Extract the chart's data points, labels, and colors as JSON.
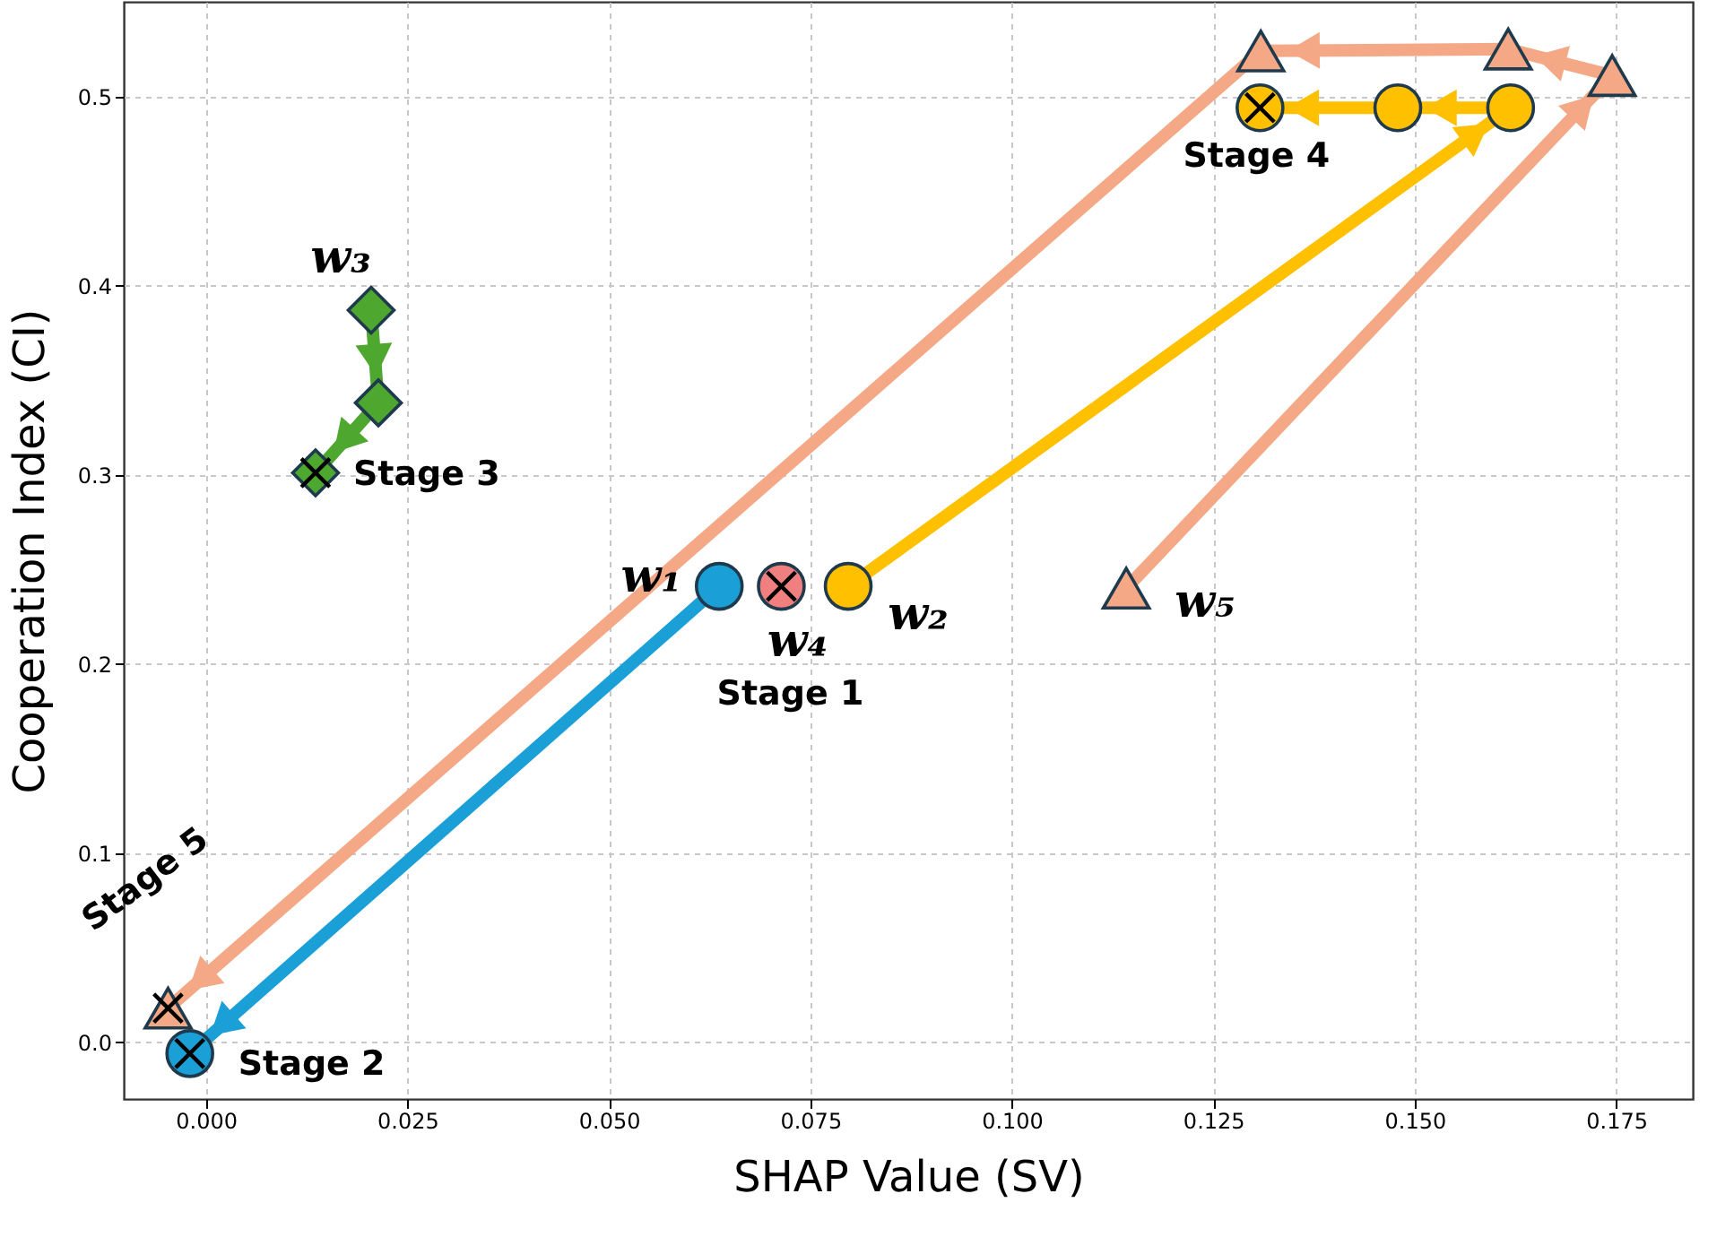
{
  "chart_data": {
    "type": "line",
    "xlabel": "SHAP Value (SV)",
    "ylabel": "Cooperation Index (CI)",
    "xlim": [
      -0.0102,
      0.1845
    ],
    "ylim": [
      -0.03,
      0.55
    ],
    "xticks": [
      {
        "value": 0,
        "label": "0.000"
      },
      {
        "value": 0.025,
        "label": "0.025"
      },
      {
        "value": 0.05,
        "label": "0.050"
      },
      {
        "value": 0.075,
        "label": "0.075"
      },
      {
        "value": 0.1,
        "label": "0.100"
      },
      {
        "value": 0.125,
        "label": "0.125"
      },
      {
        "value": 0.15,
        "label": "0.150"
      },
      {
        "value": 0.175,
        "label": "0.175"
      }
    ],
    "yticks": [
      {
        "value": 0,
        "label": "0.0"
      },
      {
        "value": 0.1,
        "label": "0.1"
      },
      {
        "value": 0.2,
        "label": "0.2"
      },
      {
        "value": 0.3,
        "label": "0.3"
      },
      {
        "value": 0.4,
        "label": "0.4"
      },
      {
        "value": 0.5,
        "label": "0.5"
      }
    ],
    "grid": true,
    "series": [
      {
        "name": "w₁",
        "marker": "circle",
        "color": "#1a9fd6",
        "x": [
          0.0637,
          -0.002
        ],
        "values": [
          0.241,
          -0.006
        ]
      },
      {
        "name": "w₂",
        "marker": "circle",
        "color": "#ffc000",
        "x": [
          0.0797,
          0.1619,
          0.1479,
          0.1308
        ],
        "values": [
          0.241,
          0.494,
          0.494,
          0.494
        ]
      },
      {
        "name": "w₃",
        "marker": "diamond",
        "color": "#4ea72e",
        "x": [
          0.0205,
          0.0214,
          0.0136
        ],
        "values": [
          0.387,
          0.338,
          0.301
        ]
      },
      {
        "name": "w₄",
        "type": "scatter",
        "marker": "circle",
        "color": "#f08080",
        "x": [
          0.0714
        ],
        "values": [
          0.241
        ]
      },
      {
        "name": "w₅",
        "marker": "triangle",
        "color": "#f4a886",
        "x": [
          0.1142,
          0.1745,
          0.1616,
          0.1309,
          -0.0047
        ],
        "values": [
          0.24,
          0.511,
          0.525,
          0.524,
          0.018
        ]
      },
      {
        "type": "scatter",
        "marker": "cross",
        "color": "#000000",
        "x": [
          0.0714,
          -0.002,
          0.0136,
          0.1308,
          -0.0047
        ],
        "values": [
          0.241,
          -0.006,
          0.301,
          0.494,
          0.018
        ]
      }
    ],
    "annotations": [
      {
        "text": "Stage 1",
        "x": 0.0714,
        "y": 0.241
      },
      {
        "text": "Stage 2",
        "x": -0.002,
        "y": -0.006
      },
      {
        "text": "Stage 3",
        "x": 0.0136,
        "y": 0.301
      },
      {
        "text": "Stage 4",
        "x": 0.1308,
        "y": 0.494
      },
      {
        "text": "Stage 5",
        "x": -0.0047,
        "y": 0.018
      }
    ]
  }
}
